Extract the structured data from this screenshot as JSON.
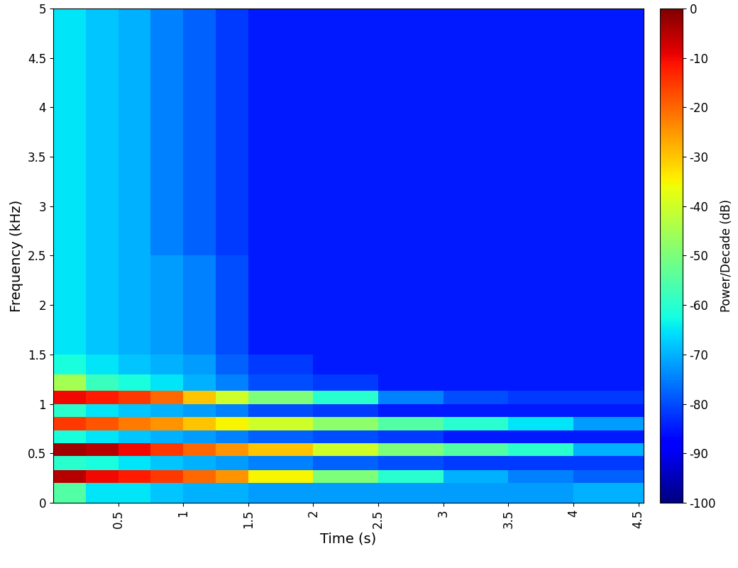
{
  "chart_data": {
    "type": "heatmap",
    "xlabel": "Time (s)",
    "ylabel": "Frequency (kHz)",
    "xlim": [
      0,
      4.54
    ],
    "ylim": [
      0,
      5
    ],
    "xticks": [
      0.5,
      1,
      1.5,
      2,
      2.5,
      3,
      3.5,
      4,
      4.5
    ],
    "yticks": [
      0,
      0.5,
      1,
      1.5,
      2,
      2.5,
      3,
      3.5,
      4,
      4.5,
      5
    ],
    "color": "jet",
    "x_edges": [
      0,
      0.25,
      0.5,
      0.75,
      1.0,
      1.25,
      1.5,
      2,
      2.5,
      3,
      3.5,
      4,
      4.54
    ],
    "y_edges": [
      0,
      0.2,
      0.33,
      0.47,
      0.6,
      0.73,
      0.87,
      1.0,
      1.13,
      1.3,
      1.5,
      2,
      2.5,
      3,
      3.5,
      4,
      4.5,
      5
    ],
    "cells": [
      [
        -55,
        -65,
        -65,
        -68,
        -70,
        -70,
        -72,
        -72,
        -72,
        -72,
        -72,
        -70
      ],
      [
        -5,
        -10,
        -12,
        -15,
        -20,
        -25,
        -35,
        -50,
        -60,
        -70,
        -75,
        -78
      ],
      [
        -60,
        -62,
        -65,
        -68,
        -70,
        -72,
        -75,
        -78,
        -80,
        -82,
        -82,
        -82
      ],
      [
        -3,
        -5,
        -10,
        -15,
        -20,
        -25,
        -30,
        -40,
        -50,
        -55,
        -60,
        -70
      ],
      [
        -62,
        -65,
        -68,
        -70,
        -72,
        -75,
        -78,
        -80,
        -82,
        -85,
        -85,
        -85
      ],
      [
        -15,
        -18,
        -22,
        -25,
        -30,
        -35,
        -40,
        -48,
        -55,
        -60,
        -65,
        -72
      ],
      [
        -60,
        -65,
        -68,
        -70,
        -72,
        -75,
        -80,
        -82,
        -85,
        -85,
        -85,
        -85
      ],
      [
        -10,
        -12,
        -15,
        -20,
        -30,
        -40,
        -50,
        -60,
        -75,
        -80,
        -82,
        -82
      ],
      [
        -45,
        -58,
        -62,
        -65,
        -70,
        -75,
        -80,
        -82,
        -85,
        -85,
        -85,
        -85
      ],
      [
        -62,
        -65,
        -68,
        -70,
        -72,
        -78,
        -82,
        -85,
        -85,
        -85,
        -85,
        -85
      ],
      [
        -65,
        -68,
        -70,
        -72,
        -75,
        -80,
        -85,
        -85,
        -85,
        -85,
        -85,
        -85
      ],
      [
        -65,
        -68,
        -70,
        -72,
        -75,
        -80,
        -85,
        -85,
        -85,
        -85,
        -85,
        -85
      ],
      [
        -65,
        -68,
        -70,
        -75,
        -78,
        -82,
        -85,
        -85,
        -85,
        -85,
        -85,
        -85
      ],
      [
        -65,
        -68,
        -70,
        -75,
        -78,
        -82,
        -85,
        -85,
        -85,
        -85,
        -85,
        -85
      ],
      [
        -65,
        -68,
        -70,
        -75,
        -78,
        -82,
        -85,
        -85,
        -85,
        -85,
        -85,
        -85
      ],
      [
        -65,
        -68,
        -70,
        -75,
        -78,
        -82,
        -85,
        -85,
        -85,
        -85,
        -85,
        -85
      ],
      [
        -65,
        -68,
        -70,
        -75,
        -78,
        -82,
        -85,
        -85,
        -85,
        -85,
        -85,
        -85
      ]
    ],
    "colorbar_label": "Power/Decade (dB)",
    "colorbar_lim": [
      -100,
      0
    ],
    "colorbar_ticks": [
      -100,
      -90,
      -80,
      -70,
      -60,
      -50,
      -40,
      -30,
      -20,
      -10,
      0
    ]
  }
}
